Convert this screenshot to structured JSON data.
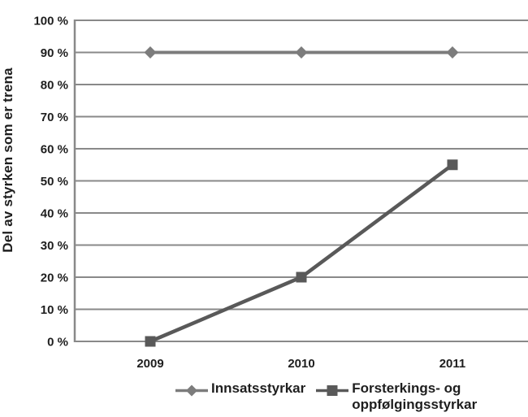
{
  "chart_data": {
    "type": "line",
    "categories": [
      "2009",
      "2010",
      "2011"
    ],
    "series": [
      {
        "name": "Innsatsstyrkar",
        "values": [
          90,
          90,
          90
        ],
        "marker": "diamond",
        "color": "#7c7c7c",
        "line_width": 4
      },
      {
        "name": "Forsterkings- og oppfølgingsstyrkar",
        "values": [
          0,
          20,
          55
        ],
        "marker": "square",
        "color": "#595959",
        "line_width": 4.5
      }
    ],
    "title": "",
    "xlabel": "",
    "ylabel": "Del av styrken som er trena",
    "ylim": [
      0,
      100
    ],
    "yticks": [
      "0 %",
      "10 %",
      "20 %",
      "30 %",
      "40 %",
      "50 %",
      "60 %",
      "70 %",
      "80 %",
      "90 %",
      "100 %"
    ],
    "grid": true,
    "legend_position": "bottom"
  },
  "colors": {
    "background": "#ffffff",
    "grid": "#898989",
    "axis": "#898989",
    "text": "#1e1e1e"
  }
}
